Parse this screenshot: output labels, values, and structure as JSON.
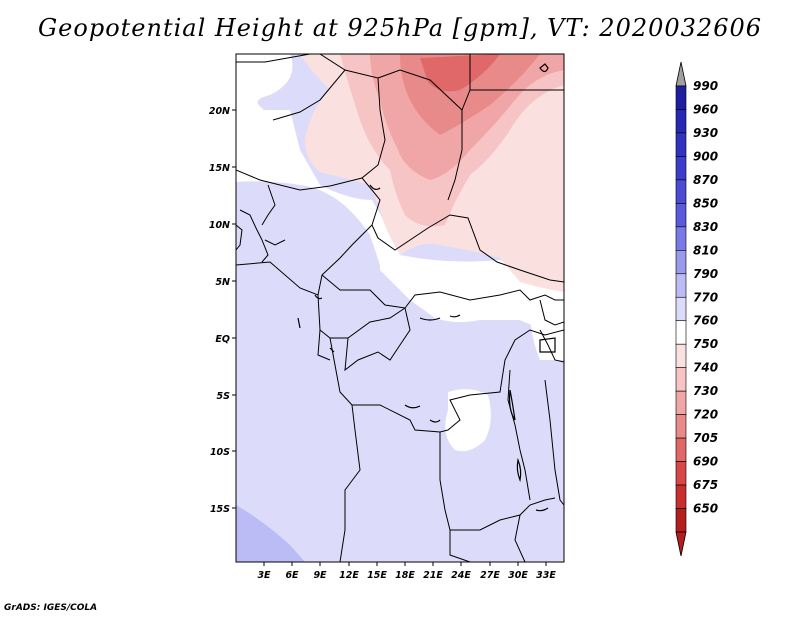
{
  "title": "Geopotential Height at 925hPa [gpm], VT: 2020032606",
  "footer": "GrADS: IGES/COLA",
  "latitude_labels": [
    "20N",
    "15N",
    "10N",
    "5N",
    "EQ",
    "5S",
    "10S",
    "15S"
  ],
  "longitude_labels": [
    "3E",
    "6E",
    "9E",
    "12E",
    "15E",
    "18E",
    "21E",
    "24E",
    "27E",
    "30E",
    "33E"
  ],
  "colorbar": {
    "levels": [
      "990",
      "960",
      "930",
      "900",
      "870",
      "850",
      "830",
      "810",
      "790",
      "770",
      "760",
      "750",
      "740",
      "730",
      "720",
      "705",
      "690",
      "675",
      "650"
    ],
    "colors": [
      "#1e1ea0",
      "#2828b4",
      "#3232c0",
      "#3c3ccc",
      "#4b4bd4",
      "#5a5adc",
      "#7a7ae6",
      "#9999ee",
      "#bbbbf6",
      "#dcdcfa",
      "#ffffff",
      "#fbe0e0",
      "#f6c4c4",
      "#f0a6a6",
      "#e88a8a",
      "#e06868",
      "#d84848",
      "#c83030",
      "#b41e1e"
    ],
    "over_arrow_color": "#a0a0a0",
    "under_arrow_color": "#b41e1e"
  }
}
